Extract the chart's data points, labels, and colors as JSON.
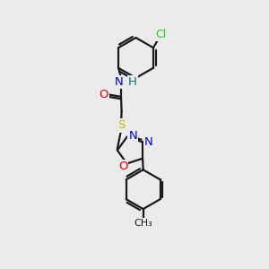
{
  "bg_color": "#ebebeb",
  "bond_color": "#1a1a1a",
  "bond_width": 1.6,
  "figsize": [
    3.0,
    3.0
  ],
  "dpi": 100,
  "colors": {
    "Cl": "#22cc22",
    "N": "#0000ee",
    "H": "#007777",
    "O": "#ee0000",
    "S": "#bbbb00",
    "C": "#1a1a1a",
    "CH3": "#1a1a1a"
  }
}
